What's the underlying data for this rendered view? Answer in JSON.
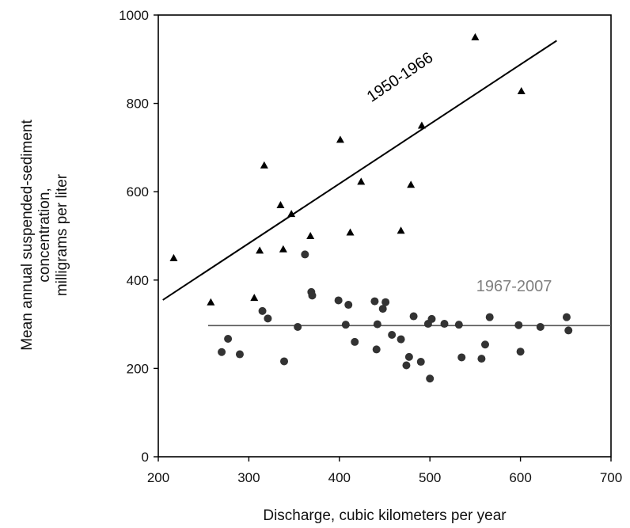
{
  "chart_data": {
    "type": "scatter",
    "xlabel": "Discharge, cubic kilometers per year",
    "ylabel": [
      "Mean annual suspended-sediment",
      "concentration,",
      "milligrams per liter"
    ],
    "xlim": [
      200,
      700
    ],
    "ylim": [
      0,
      1000
    ],
    "x_ticks": [
      200,
      300,
      400,
      500,
      600,
      700
    ],
    "y_ticks": [
      0,
      200,
      400,
      600,
      800,
      1000
    ],
    "grid": false,
    "legend": "none",
    "series": [
      {
        "name": "1950-1966",
        "marker": "triangle",
        "color": "#000000",
        "points": [
          [
            217,
            450
          ],
          [
            258,
            350
          ],
          [
            306,
            360
          ],
          [
            312,
            467
          ],
          [
            317,
            660
          ],
          [
            335,
            570
          ],
          [
            338,
            470
          ],
          [
            347,
            550
          ],
          [
            368,
            500
          ],
          [
            401,
            718
          ],
          [
            412,
            508
          ],
          [
            424,
            623
          ],
          [
            468,
            512
          ],
          [
            479,
            616
          ],
          [
            491,
            750
          ],
          [
            550,
            950
          ],
          [
            601,
            828
          ]
        ],
        "trend": {
          "from": [
            205,
            355
          ],
          "to": [
            640,
            942
          ],
          "color": "#000000"
        }
      },
      {
        "name": "1967-2007",
        "marker": "circle",
        "color": "#333333",
        "points": [
          [
            270,
            237
          ],
          [
            277,
            267
          ],
          [
            290,
            232
          ],
          [
            315,
            330
          ],
          [
            321,
            313
          ],
          [
            339,
            216
          ],
          [
            354,
            294
          ],
          [
            362,
            458
          ],
          [
            369,
            373
          ],
          [
            370,
            365
          ],
          [
            399,
            354
          ],
          [
            407,
            299
          ],
          [
            410,
            344
          ],
          [
            417,
            260
          ],
          [
            439,
            352
          ],
          [
            441,
            243
          ],
          [
            442,
            300
          ],
          [
            448,
            335
          ],
          [
            451,
            350
          ],
          [
            458,
            276
          ],
          [
            468,
            266
          ],
          [
            474,
            207
          ],
          [
            477,
            226
          ],
          [
            482,
            318
          ],
          [
            490,
            215
          ],
          [
            498,
            301
          ],
          [
            500,
            177
          ],
          [
            502,
            312
          ],
          [
            516,
            301
          ],
          [
            532,
            299
          ],
          [
            535,
            225
          ],
          [
            557,
            222
          ],
          [
            561,
            254
          ],
          [
            566,
            316
          ],
          [
            598,
            298
          ],
          [
            600,
            238
          ],
          [
            622,
            294
          ],
          [
            651,
            316
          ],
          [
            653,
            286
          ]
        ],
        "trend": {
          "from": [
            255,
            297
          ],
          "to": [
            700,
            297
          ],
          "color": "#555555"
        }
      }
    ],
    "annotations": [
      {
        "text": "1950-1966",
        "x": 470,
        "y": 850,
        "rotation_deg": -34,
        "color": "#000000"
      },
      {
        "text": "1967-2007",
        "x": 593,
        "y": 375,
        "rotation_deg": 0,
        "color": "#808080"
      }
    ]
  }
}
